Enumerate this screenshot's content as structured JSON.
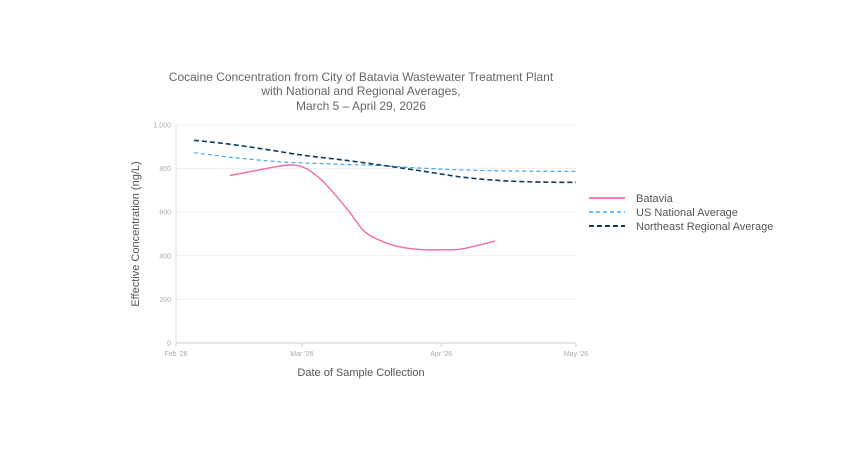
{
  "chart_data": {
    "type": "line",
    "title_lines": [
      "Cocaine Concentration from City of Batavia Wastewater Treatment Plant",
      "with National and Regional Averages,",
      "March 5 – April 29, 2026"
    ],
    "xlabel": "Date of Sample Collection",
    "ylabel": "Effective Concentration (ng/L)",
    "x_ticks": [
      {
        "date": "2026-02-01",
        "label": "Feb '26"
      },
      {
        "date": "2026-03-01",
        "label": "Mar '26"
      },
      {
        "date": "2026-04-01",
        "label": "Apr '26"
      },
      {
        "date": "2026-05-01",
        "label": "May '26"
      }
    ],
    "xlim": [
      "2026-02-01",
      "2026-05-01"
    ],
    "ylim": [
      0,
      1000
    ],
    "y_ticks": [
      {
        "value": 0,
        "label": "0"
      },
      {
        "value": 200,
        "label": "200"
      },
      {
        "value": 400,
        "label": "400"
      },
      {
        "value": 600,
        "label": "600"
      },
      {
        "value": 800,
        "label": "800"
      },
      {
        "value": 1000,
        "label": "1,000"
      }
    ],
    "grid": true,
    "legend_position": "right",
    "series": [
      {
        "name": "Batavia",
        "color": "#f06aa8",
        "dash": "solid",
        "points": [
          {
            "x": "2026-02-13",
            "y": 768
          },
          {
            "x": "2026-02-18",
            "y": 788
          },
          {
            "x": "2026-02-23",
            "y": 808
          },
          {
            "x": "2026-02-27",
            "y": 817
          },
          {
            "x": "2026-03-02",
            "y": 800
          },
          {
            "x": "2026-03-05",
            "y": 755
          },
          {
            "x": "2026-03-08",
            "y": 690
          },
          {
            "x": "2026-03-12",
            "y": 590
          },
          {
            "x": "2026-03-15",
            "y": 510
          },
          {
            "x": "2026-03-19",
            "y": 465
          },
          {
            "x": "2026-03-23",
            "y": 440
          },
          {
            "x": "2026-03-28",
            "y": 428
          },
          {
            "x": "2026-04-01",
            "y": 428
          },
          {
            "x": "2026-04-05",
            "y": 430
          },
          {
            "x": "2026-04-09",
            "y": 447
          },
          {
            "x": "2026-04-13",
            "y": 468
          }
        ]
      },
      {
        "name": "US National Average",
        "color": "#3fa9f5",
        "dash": "short",
        "points": [
          {
            "x": "2026-02-05",
            "y": 873
          },
          {
            "x": "2026-02-15",
            "y": 848
          },
          {
            "x": "2026-02-25",
            "y": 830
          },
          {
            "x": "2026-03-08",
            "y": 821
          },
          {
            "x": "2026-03-18",
            "y": 814
          },
          {
            "x": "2026-03-28",
            "y": 802
          },
          {
            "x": "2026-04-07",
            "y": 793
          },
          {
            "x": "2026-04-17",
            "y": 789
          },
          {
            "x": "2026-04-27",
            "y": 787
          },
          {
            "x": "2026-05-01",
            "y": 787
          }
        ]
      },
      {
        "name": "Northeast Regional Average",
        "color": "#0c3d61",
        "dash": "long",
        "points": [
          {
            "x": "2026-02-05",
            "y": 930
          },
          {
            "x": "2026-02-13",
            "y": 912
          },
          {
            "x": "2026-02-21",
            "y": 888
          },
          {
            "x": "2026-03-01",
            "y": 862
          },
          {
            "x": "2026-03-10",
            "y": 840
          },
          {
            "x": "2026-03-19",
            "y": 815
          },
          {
            "x": "2026-03-28",
            "y": 788
          },
          {
            "x": "2026-04-06",
            "y": 760
          },
          {
            "x": "2026-04-15",
            "y": 744
          },
          {
            "x": "2026-04-24",
            "y": 738
          },
          {
            "x": "2026-05-01",
            "y": 737
          }
        ]
      }
    ]
  }
}
